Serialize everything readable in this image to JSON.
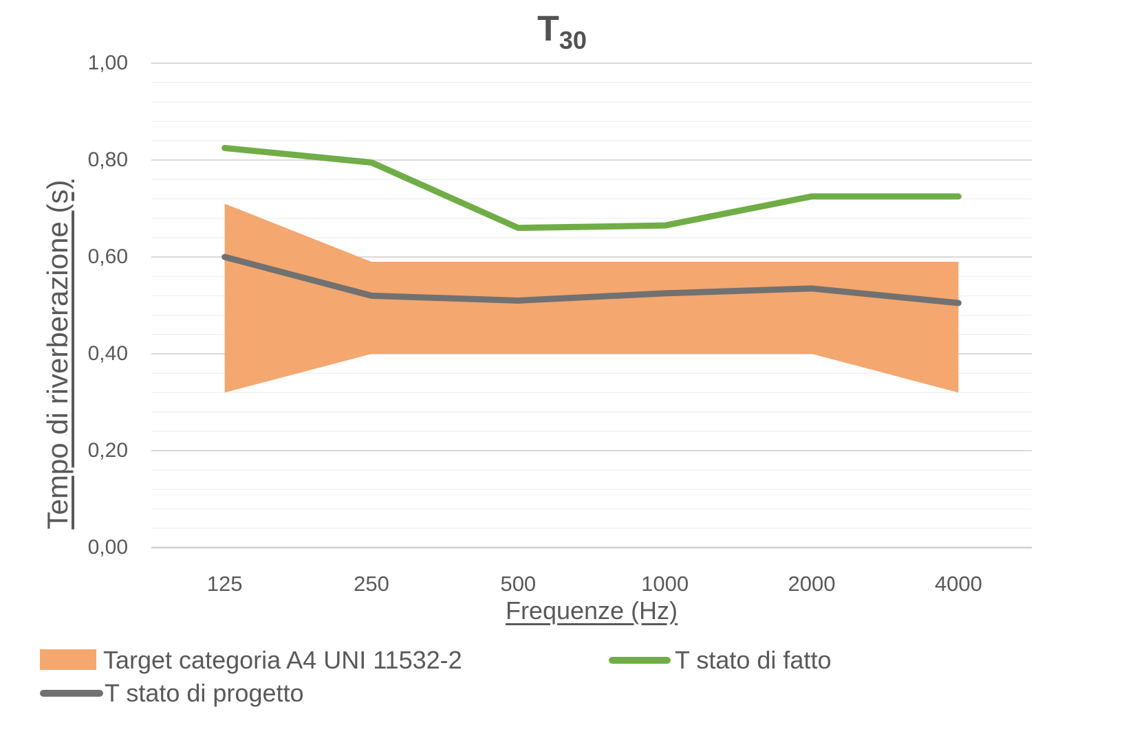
{
  "title": {
    "main": "T",
    "subscript": "30"
  },
  "y_axis": {
    "title": "Tempo di riverberazione (s)",
    "tick_labels": [
      "0,00",
      "0,20",
      "0,40",
      "0,60",
      "0,80",
      "1,00"
    ]
  },
  "x_axis": {
    "title": "Frequenze (Hz)",
    "tick_labels": [
      "125",
      "250",
      "500",
      "1000",
      "2000",
      "4000"
    ]
  },
  "legend": {
    "items": [
      {
        "label": "Target categoria A4 UNI 11532-2",
        "swatch": "band",
        "color": "#F4A76F"
      },
      {
        "label": "T stato di fatto",
        "swatch": "line",
        "color": "#70AD47"
      },
      {
        "label": "T stato di progetto",
        "swatch": "line",
        "color": "#717171"
      }
    ]
  },
  "colors": {
    "band": "#F4A76F",
    "line_fatto": "#70AD47",
    "line_progetto": "#717171",
    "text": "#595959",
    "grid_major": "#D9D9D9",
    "grid_minor": "#F1F1F1",
    "axis_line": "#D0D0D0"
  },
  "chart_data": {
    "type": "line",
    "title": "T30",
    "xlabel": "Frequenze (Hz)",
    "ylabel": "Tempo di riverberazione (s)",
    "categories": [
      125,
      250,
      500,
      1000,
      2000,
      4000
    ],
    "series": [
      {
        "name": "Target categoria A4 UNI 11532-2",
        "kind": "band",
        "lower": [
          0.32,
          0.4,
          0.4,
          0.4,
          0.4,
          0.32
        ],
        "upper": [
          0.71,
          0.59,
          0.59,
          0.59,
          0.59,
          0.59
        ],
        "color": "#F4A76F"
      },
      {
        "name": "T stato di fatto",
        "kind": "line",
        "values": [
          0.825,
          0.795,
          0.66,
          0.665,
          0.725,
          0.725
        ],
        "color": "#70AD47"
      },
      {
        "name": "T stato di progetto",
        "kind": "line",
        "values": [
          0.6,
          0.52,
          0.51,
          0.525,
          0.535,
          0.505
        ],
        "color": "#717171"
      }
    ],
    "ylim": [
      0.0,
      1.0
    ],
    "y_major_unit": 0.2,
    "y_minor_unit": 0.04,
    "grid": true,
    "legend_position": "bottom"
  }
}
